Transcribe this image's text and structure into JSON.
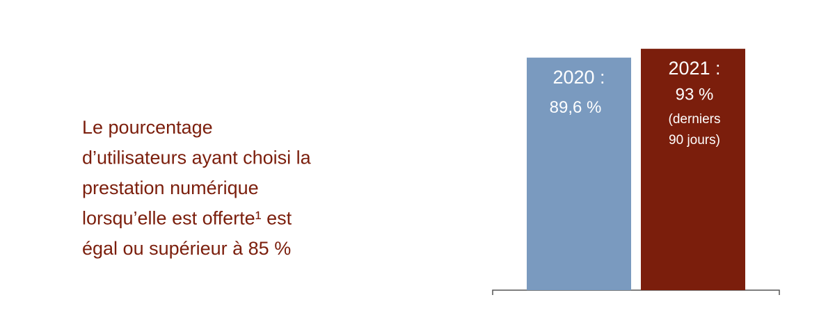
{
  "chart_data": {
    "type": "bar",
    "description": [
      "Le pourcentage",
      "d’utilisateurs ayant choisi la",
      "prestation numérique",
      "lorsqu’elle est offerte¹ est",
      "égal ou supérieur à 85 %"
    ],
    "categories": [
      "2020 :",
      "2021 :"
    ],
    "values": [
      89.6,
      93
    ],
    "value_labels": [
      "89,6 %",
      "93 %"
    ],
    "annotation": [
      "(derniers",
      "90 jours)"
    ],
    "colors": [
      "#7a9abf",
      "#7b1e0c"
    ],
    "ylim": [
      0,
      100
    ]
  }
}
